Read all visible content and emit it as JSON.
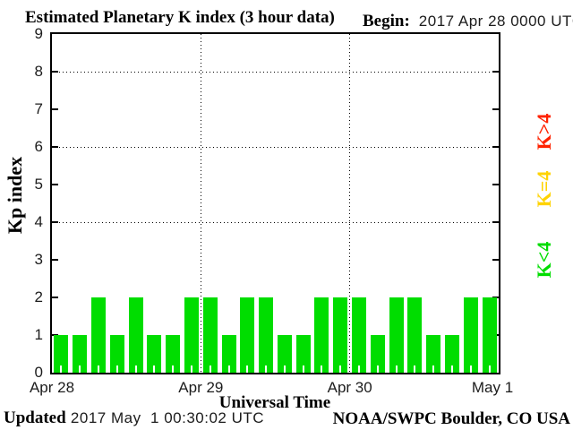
{
  "header": {
    "title": "Estimated Planetary K index (3 hour data)",
    "begin_label": "Begin:",
    "begin_value": "2017 Apr 28 0000 UTC"
  },
  "chart_data": {
    "type": "bar",
    "title": "Estimated Planetary K index (3 hour data)",
    "xlabel": "Universal Time",
    "ylabel": "Kp index",
    "ylim": [
      0,
      9
    ],
    "grid_y_dotted": [
      4,
      6,
      8
    ],
    "interval_hours": 3,
    "x_tick_labels": [
      "Apr 28",
      "Apr 29",
      "Apr 30",
      "May 1"
    ],
    "series": [
      {
        "date": "Apr 28",
        "values": [
          1,
          1,
          2,
          1,
          2,
          1,
          1,
          2
        ]
      },
      {
        "date": "Apr 29",
        "values": [
          2,
          1,
          2,
          2,
          1,
          1,
          2,
          2
        ]
      },
      {
        "date": "Apr 30",
        "values": [
          2,
          1,
          2,
          2,
          1,
          1,
          2,
          2
        ]
      }
    ],
    "values": [
      1,
      1,
      2,
      1,
      2,
      1,
      1,
      2,
      2,
      1,
      2,
      2,
      1,
      1,
      2,
      2,
      2,
      1,
      2,
      2,
      1,
      1,
      2,
      2
    ],
    "color_rule": {
      "below_4": "#00dd00",
      "equal_4": "#ffd300",
      "above_4": "#ff2200"
    }
  },
  "legend": {
    "items": [
      {
        "label": "K>4",
        "color": "#ff2200"
      },
      {
        "label": "K=4",
        "color": "#ffd300"
      },
      {
        "label": "K<4",
        "color": "#00dd00"
      }
    ]
  },
  "footer": {
    "updated_label": "Updated",
    "updated_value": " 2017 May  1 00:30:02 UTC",
    "source": "NOAA/SWPC Boulder, CO USA"
  }
}
